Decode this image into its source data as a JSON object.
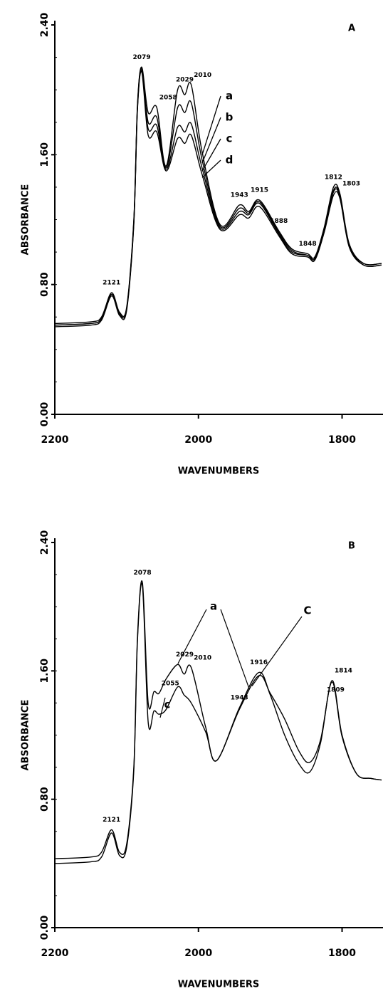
{
  "chart_data": [
    {
      "type": "line",
      "panel": "A",
      "xlabel": "WAVENUMBERS",
      "ylabel": "ABSORBANCE",
      "xlim": [
        2200,
        1745
      ],
      "xticks": [
        2200,
        2000,
        1800
      ],
      "ylim": [
        0,
        2.4
      ],
      "yticks": [
        {
          "value": 0,
          "label": "0.00"
        },
        {
          "value": 0.8,
          "label": "0.80"
        },
        {
          "value": 1.6,
          "label": "1.60"
        },
        {
          "value": 2.4,
          "label": "2.40"
        }
      ],
      "x": [
        2200,
        2150,
        2135,
        2121,
        2110,
        2100,
        2090,
        2085,
        2079,
        2070,
        2058,
        2045,
        2029,
        2019,
        2010,
        1995,
        1970,
        1943,
        1930,
        1915,
        1888,
        1870,
        1848,
        1838,
        1825,
        1812,
        1803,
        1790,
        1770,
        1745
      ],
      "series": [
        {
          "name": "a",
          "color": "#000000",
          "values": [
            0.56,
            0.57,
            0.6,
            0.75,
            0.63,
            0.66,
            1.2,
            1.9,
            2.14,
            1.86,
            1.89,
            1.53,
            2.0,
            1.97,
            2.03,
            1.62,
            1.17,
            1.29,
            1.25,
            1.32,
            1.13,
            1.02,
            0.99,
            0.97,
            1.15,
            1.4,
            1.36,
            1.05,
            0.93,
            0.93
          ]
        },
        {
          "name": "b",
          "color": "#000000",
          "values": [
            0.55,
            0.56,
            0.59,
            0.74,
            0.62,
            0.65,
            1.19,
            1.89,
            2.13,
            1.8,
            1.83,
            1.52,
            1.89,
            1.86,
            1.92,
            1.57,
            1.16,
            1.27,
            1.24,
            1.31,
            1.12,
            1.01,
            0.98,
            0.96,
            1.14,
            1.38,
            1.35,
            1.04,
            0.93,
            0.93
          ]
        },
        {
          "name": "c",
          "color": "#000000",
          "values": [
            0.55,
            0.56,
            0.59,
            0.74,
            0.62,
            0.65,
            1.18,
            1.88,
            2.12,
            1.76,
            1.78,
            1.51,
            1.77,
            1.74,
            1.79,
            1.52,
            1.15,
            1.25,
            1.23,
            1.3,
            1.11,
            1.0,
            0.98,
            0.96,
            1.13,
            1.37,
            1.34,
            1.04,
            0.92,
            0.92
          ]
        },
        {
          "name": "d",
          "color": "#000000",
          "values": [
            0.54,
            0.55,
            0.58,
            0.73,
            0.61,
            0.64,
            1.17,
            1.87,
            2.11,
            1.72,
            1.74,
            1.5,
            1.7,
            1.67,
            1.72,
            1.48,
            1.14,
            1.23,
            1.21,
            1.28,
            1.1,
            0.99,
            0.97,
            0.95,
            1.12,
            1.35,
            1.33,
            1.03,
            0.92,
            0.92
          ]
        }
      ],
      "annotations": [
        "2121",
        "2079",
        "2058",
        "2029",
        "2010",
        "1943",
        "1915",
        "1888",
        "1848",
        "1812",
        "1803"
      ]
    },
    {
      "type": "line",
      "panel": "B",
      "xlabel": "WAVENUMBERS",
      "ylabel": "ABSORBANCE",
      "xlim": [
        2200,
        1745
      ],
      "xticks": [
        2200,
        2000,
        1800
      ],
      "ylim": [
        0,
        2.4
      ],
      "yticks": [
        {
          "value": 0,
          "label": "0.00"
        },
        {
          "value": 0.8,
          "label": "0.80"
        },
        {
          "value": 1.6,
          "label": "1.60"
        },
        {
          "value": 2.4,
          "label": "2.40"
        }
      ],
      "x": [
        2200,
        2150,
        2135,
        2121,
        2110,
        2100,
        2090,
        2085,
        2078,
        2070,
        2062,
        2055,
        2045,
        2029,
        2020,
        2010,
        1990,
        1975,
        1943,
        1916,
        1900,
        1880,
        1860,
        1845,
        1830,
        1814,
        1800,
        1780,
        1760,
        1745
      ],
      "series": [
        {
          "name": "a",
          "color": "#000000",
          "values": [
            0.43,
            0.44,
            0.47,
            0.61,
            0.47,
            0.52,
            1.0,
            1.8,
            2.15,
            1.4,
            1.47,
            1.46,
            1.55,
            1.64,
            1.58,
            1.62,
            1.25,
            1.04,
            1.37,
            1.59,
            1.45,
            1.2,
            1.02,
            0.97,
            1.15,
            1.54,
            1.2,
            0.96,
            0.93,
            0.92
          ]
        },
        {
          "name": "c",
          "color": "#000000",
          "values": [
            0.4,
            0.41,
            0.44,
            0.59,
            0.45,
            0.5,
            0.98,
            1.78,
            2.13,
            1.28,
            1.35,
            1.33,
            1.36,
            1.5,
            1.45,
            1.4,
            1.22,
            1.04,
            1.36,
            1.57,
            1.46,
            1.3,
            1.1,
            1.03,
            1.17,
            1.53,
            1.19,
            0.96,
            0.93,
            0.92
          ]
        }
      ],
      "annotations": [
        "2121",
        "2078",
        "2055",
        "2029",
        "2010",
        "1943",
        "1916",
        "1809",
        "1814"
      ],
      "extra_label": "C"
    }
  ]
}
